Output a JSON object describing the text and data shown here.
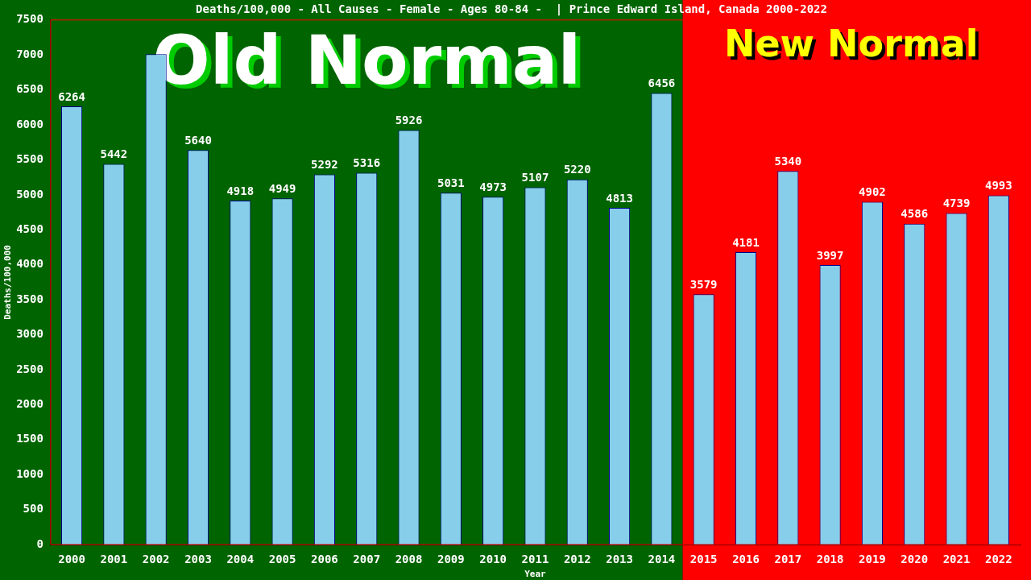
{
  "chart_data": {
    "type": "bar",
    "title": "Deaths/100,000 - All Causes - Female - Ages 80-84 -  | Prince Edward Island, Canada 2000-2022",
    "xlabel": "Year",
    "ylabel": "Deaths/100,000",
    "categories": [
      "2000",
      "2001",
      "2002",
      "2003",
      "2004",
      "2005",
      "2006",
      "2007",
      "2008",
      "2009",
      "2010",
      "2011",
      "2012",
      "2013",
      "2014",
      "2015",
      "2016",
      "2017",
      "2018",
      "2019",
      "2020",
      "2021",
      "2022"
    ],
    "values": [
      6264,
      5442,
      7010,
      5640,
      4918,
      4949,
      5292,
      5316,
      5926,
      5031,
      4973,
      5107,
      5220,
      4813,
      6456,
      3579,
      4181,
      5340,
      3997,
      4902,
      4586,
      4739,
      4993
    ],
    "value_labels": [
      "6264",
      "5442",
      null,
      "5640",
      "4918",
      "4949",
      "5292",
      "5316",
      "5926",
      "5031",
      "4973",
      "5107",
      "5220",
      "4813",
      "6456",
      "3579",
      "4181",
      "5340",
      "3997",
      "4902",
      "4586",
      "4739",
      "4993"
    ],
    "color": "#87ceeb",
    "ylim": [
      0,
      7500
    ],
    "yticks": [
      0,
      500,
      1000,
      1500,
      2000,
      2500,
      3000,
      3500,
      4000,
      4500,
      5000,
      5500,
      6000,
      6500,
      7000,
      7500
    ],
    "bands": [
      {
        "axis": "x",
        "from": "2000",
        "to": "2014",
        "label": "Old Normal",
        "color": "#006400"
      },
      {
        "axis": "x",
        "from": "2015",
        "to": "2022",
        "label": "New Normal",
        "color": "#ff0000"
      }
    ]
  }
}
